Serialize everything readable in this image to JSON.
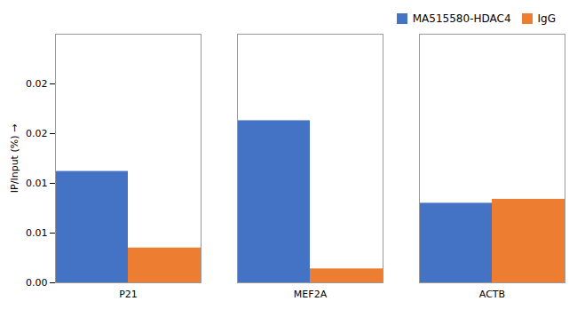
{
  "chart_data": {
    "type": "bar",
    "categories": [
      "P21",
      "MEF2A",
      "ACTB"
    ],
    "series": [
      {
        "name": "MA515580-HDAC4",
        "color": "#4472C4",
        "values": [
          0.0112,
          0.0163,
          0.008
        ]
      },
      {
        "name": "IgG",
        "color": "#ED7D31",
        "values": [
          0.0035,
          0.0014,
          0.0084
        ]
      }
    ],
    "ylabel": "IP/Input (%)",
    "ylim": [
      0,
      0.025
    ],
    "yticks": [
      {
        "value": 0,
        "label": "0.00"
      },
      {
        "value": 0.005,
        "label": "0.01"
      },
      {
        "value": 0.01,
        "label": "0.01"
      },
      {
        "value": 0.015,
        "label": "0.02"
      },
      {
        "value": 0.02,
        "label": "0.02"
      }
    ],
    "grid": false,
    "legend": "upper right"
  }
}
